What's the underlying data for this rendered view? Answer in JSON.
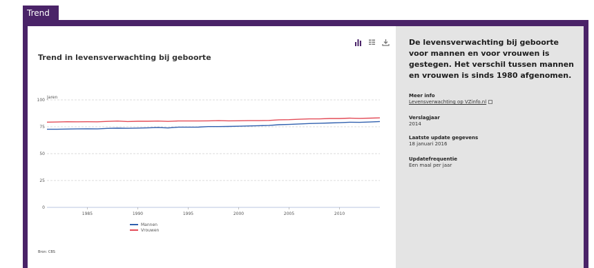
{
  "tab": {
    "label": "Trend"
  },
  "chart_data": {
    "type": "line",
    "title": "Trend in levensverwachting bij geboorte",
    "ylabel": "Jaren",
    "xlabel": "",
    "ylim": [
      0,
      100
    ],
    "yticks": [
      "0",
      "25",
      "50",
      "75",
      "100"
    ],
    "xlim": [
      1981,
      2014
    ],
    "xticks": [
      "1985",
      "1990",
      "1995",
      "2000",
      "2005",
      "2010"
    ],
    "grid": true,
    "legend_position": "bottom",
    "x": [
      1981,
      1982,
      1983,
      1984,
      1985,
      1986,
      1987,
      1988,
      1989,
      1990,
      1991,
      1992,
      1993,
      1994,
      1995,
      1996,
      1997,
      1998,
      1999,
      2000,
      2001,
      2002,
      2003,
      2004,
      2005,
      2006,
      2007,
      2008,
      2009,
      2010,
      2011,
      2012,
      2013,
      2014
    ],
    "series": [
      {
        "name": "Mannen",
        "color": "#2f5fae",
        "values": [
          72.7,
          72.7,
          72.9,
          73.0,
          73.1,
          73.0,
          73.5,
          73.7,
          73.6,
          73.8,
          74.0,
          74.3,
          73.9,
          74.6,
          74.6,
          74.7,
          75.2,
          75.2,
          75.3,
          75.5,
          75.8,
          76.0,
          76.2,
          76.9,
          77.2,
          77.6,
          78.0,
          78.3,
          78.5,
          78.8,
          79.2,
          79.1,
          79.4,
          79.9
        ]
      },
      {
        "name": "Vrouwen",
        "color": "#e34b57",
        "values": [
          79.3,
          79.4,
          79.7,
          79.6,
          79.7,
          79.6,
          80.0,
          80.3,
          79.9,
          80.1,
          80.1,
          80.3,
          80.0,
          80.4,
          80.4,
          80.4,
          80.5,
          80.7,
          80.5,
          80.6,
          80.7,
          80.7,
          80.9,
          81.5,
          81.6,
          82.0,
          82.3,
          82.3,
          82.7,
          82.7,
          83.0,
          82.8,
          83.0,
          83.3
        ]
      }
    ]
  },
  "source": "Bron: CBS",
  "side": {
    "headline": "De levensverwachting bij geboorte voor mannen en voor vrouwen is gestegen. Het verschil tussen mannen en vrouwen is sinds 1980 afgenomen.",
    "meer_info_label": "Meer info",
    "meer_info_link": "Levensverwachting op VZinfo.nl",
    "verslagjaar_label": "Verslagjaar",
    "verslagjaar_value": "2014",
    "update_label": "Laatste update gegevens",
    "update_value": "18 januari 2016",
    "freq_label": "Updatefrequentie",
    "freq_value": "Een maal per jaar"
  },
  "toolbar": {
    "icons": [
      "bar-chart-icon",
      "table-icon",
      "download-icon"
    ]
  }
}
